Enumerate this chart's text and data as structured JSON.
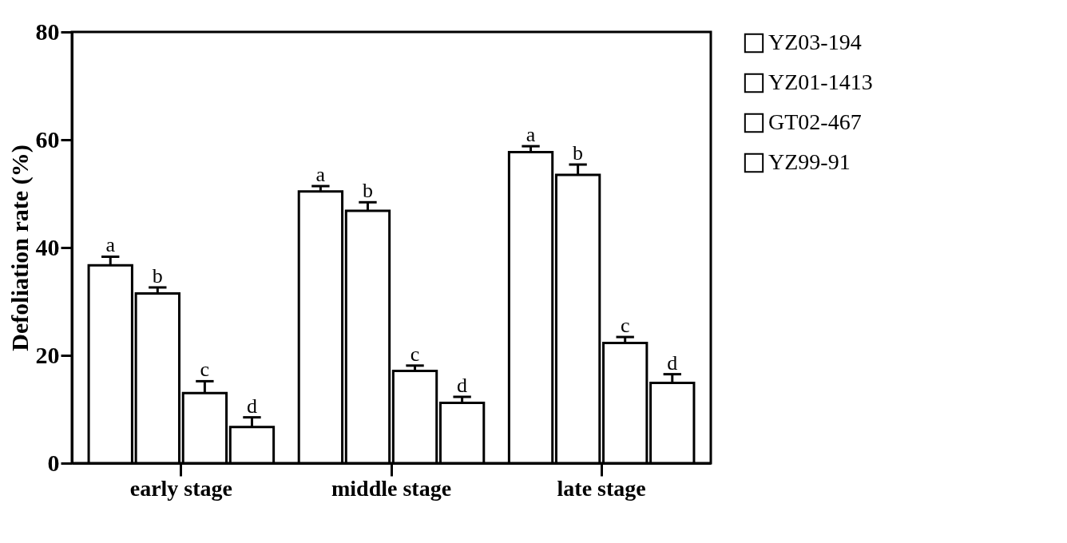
{
  "chart_data": {
    "type": "bar",
    "ylabel": "Defoliation rate (%)",
    "categories": [
      "early stage",
      "middle stage",
      "late stage"
    ],
    "series": [
      {
        "name": "YZ03-194",
        "color": "#ffffff",
        "values": [
          36.7,
          50.4,
          57.7
        ],
        "errors": [
          [
            36.7,
            38.3
          ],
          [
            50.4,
            51.4
          ],
          [
            57.7,
            58.8
          ]
        ],
        "value_labels": [
          "a",
          "a",
          "a"
        ]
      },
      {
        "name": "YZ01-1413",
        "color": "#ffffff",
        "values": [
          31.5,
          46.8,
          53.5
        ],
        "errors": [
          [
            31.5,
            32.6
          ],
          [
            46.8,
            48.4
          ],
          [
            53.5,
            55.4
          ]
        ],
        "value_labels": [
          "b",
          "b",
          "b"
        ]
      },
      {
        "name": "GT02-467",
        "color": "#ffffff",
        "values": [
          13.0,
          17.1,
          22.3
        ],
        "errors": [
          [
            13.0,
            15.2
          ],
          [
            17.1,
            18.1
          ],
          [
            22.3,
            23.4
          ]
        ],
        "value_labels": [
          "c",
          "c",
          "c"
        ]
      },
      {
        "name": "YZ99-91",
        "color": "#ffffff",
        "values": [
          6.7,
          11.2,
          14.9
        ],
        "errors": [
          [
            6.7,
            8.5
          ],
          [
            11.2,
            12.3
          ],
          [
            14.9,
            16.5
          ]
        ],
        "value_labels": [
          "d",
          "d",
          "d"
        ]
      }
    ],
    "ylim": [
      0,
      80
    ],
    "yticks": [
      0,
      20,
      40,
      60,
      80
    ],
    "grid": false,
    "legend": "right"
  }
}
